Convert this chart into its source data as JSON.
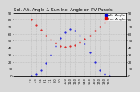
{
  "title": "Sol. Alt. Angle & Sun Inc. Angle on PV Panels",
  "legend_blue": "Alt. Angle",
  "legend_red": "Inc. Angle",
  "blue_color": "#0000dd",
  "red_color": "#dd0000",
  "background_color": "#d8d8d8",
  "plot_bg": "#d8d8d8",
  "ylim": [
    0,
    90
  ],
  "xlim": [
    0,
    23
  ],
  "yticks": [
    0,
    10,
    20,
    30,
    40,
    50,
    60,
    70,
    80,
    90
  ],
  "xtick_labels": [
    "3:3",
    "4:3",
    "5:4",
    "6:1",
    "7:1",
    "8:0",
    "9:0",
    "10:0",
    "11:0",
    "12:0",
    "13:0",
    "14:0",
    "15:0",
    "16:0",
    "17:0",
    "18:0",
    "19:0",
    "19:5",
    "20:4",
    "21:3",
    "22:3"
  ],
  "blue_x": [
    3.5,
    4.5,
    5.5,
    6.5,
    7.5,
    8.5,
    9.5,
    10.5,
    11.5,
    12.5,
    13.5,
    14.5,
    15.5,
    16.5,
    17.5,
    18.5,
    19.5
  ],
  "blue_y": [
    0,
    2,
    8,
    18,
    30,
    42,
    54,
    62,
    67,
    64,
    57,
    46,
    33,
    20,
    8,
    2,
    0
  ],
  "red_x": [
    3.5,
    4.5,
    5.5,
    6.5,
    7.5,
    8.5,
    9.5,
    10.5,
    11.5,
    12.5,
    13.5,
    14.5,
    15.5,
    16.5,
    17.5,
    18.5,
    19.5
  ],
  "red_y": [
    80,
    72,
    66,
    58,
    52,
    47,
    43,
    41,
    42,
    44,
    48,
    53,
    58,
    64,
    70,
    76,
    82
  ],
  "title_fontsize": 4.0,
  "tick_fontsize": 3.0,
  "legend_fontsize": 3.2,
  "marker_size": 1.0,
  "grid_color": "#aaaaaa",
  "grid_linestyle": ":",
  "grid_linewidth": 0.4
}
